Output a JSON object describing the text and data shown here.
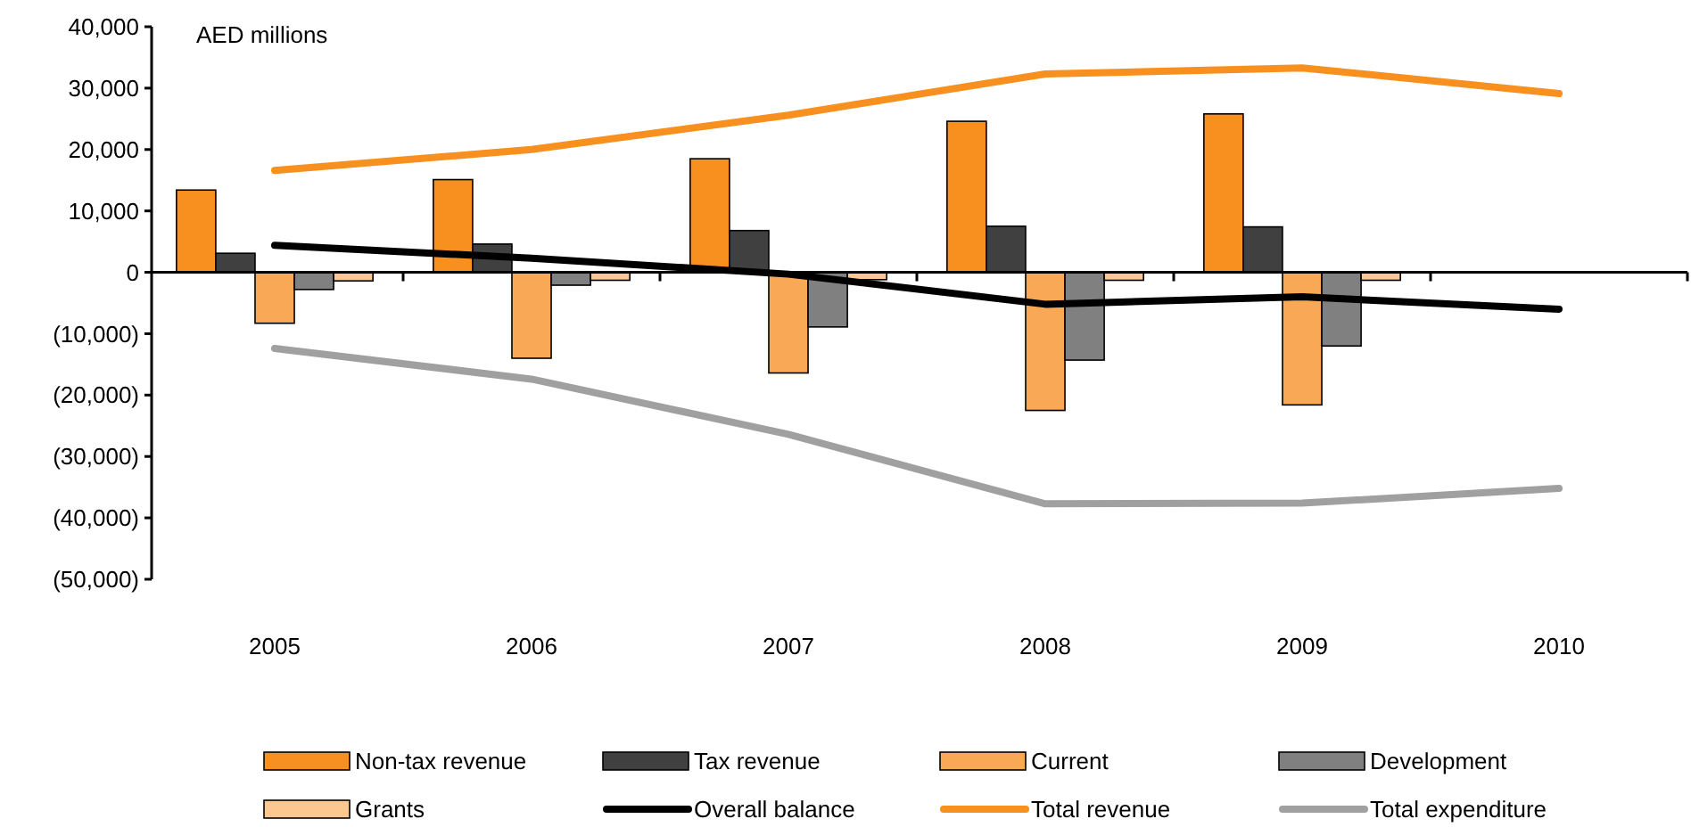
{
  "chart_data": {
    "type": "bar",
    "annotations": [
      "AED millions"
    ],
    "categories": [
      "2005",
      "2006",
      "2007",
      "2008",
      "2009",
      "2010"
    ],
    "series": [
      {
        "name": "Non-tax revenue",
        "color": "#f7901e",
        "values": [
          13400,
          15100,
          18500,
          24600,
          25800,
          null
        ]
      },
      {
        "name": "Tax revenue",
        "color": "#404040",
        "values": [
          3100,
          4600,
          6800,
          7500,
          7400,
          null
        ]
      },
      {
        "name": "Current",
        "color": "#f9a856",
        "values": [
          -8300,
          -14000,
          -16400,
          -22500,
          -21600,
          null
        ]
      },
      {
        "name": "Development",
        "color": "#808080",
        "values": [
          -2800,
          -2100,
          -8900,
          -14300,
          -12000,
          null
        ]
      },
      {
        "name": "Grants",
        "color": "#fcc890",
        "values": [
          -1400,
          -1300,
          -1200,
          -1300,
          -1300,
          null
        ]
      },
      {
        "name": "Overall balance",
        "type": "line",
        "color": "#000000",
        "values": [
          4400,
          2300,
          -300,
          -5200,
          -4000,
          -6000
        ]
      },
      {
        "name": "Total revenue",
        "type": "line",
        "color": "#f7901e",
        "values": [
          16600,
          20000,
          25600,
          32300,
          33300,
          29100
        ]
      },
      {
        "name": "Total expenditure",
        "type": "line",
        "color": "#a0a0a0",
        "values": [
          -12400,
          -17400,
          -26400,
          -37700,
          -37600,
          -35200
        ]
      }
    ],
    "ylim": [
      -50000,
      40000
    ],
    "yticks": [
      {
        "value": -50000,
        "label": "(50,000)"
      },
      {
        "value": -40000,
        "label": "(40,000)"
      },
      {
        "value": -30000,
        "label": "(30,000)"
      },
      {
        "value": -20000,
        "label": "(20,000)"
      },
      {
        "value": -10000,
        "label": "(10,000)"
      },
      {
        "value": 0,
        "label": "0"
      },
      {
        "value": 10000,
        "label": "10,000"
      },
      {
        "value": 20000,
        "label": "20,000"
      },
      {
        "value": 30000,
        "label": "30,000"
      },
      {
        "value": 40000,
        "label": "40,000"
      }
    ],
    "legend": "bottom"
  }
}
